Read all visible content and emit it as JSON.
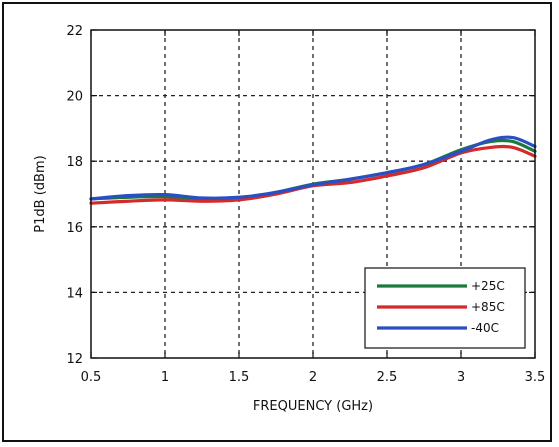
{
  "chart_data": {
    "type": "line",
    "title": "",
    "xlabel": "FREQUENCY (GHz)",
    "ylabel": "P1dB (dBm)",
    "xlim": [
      0.5,
      3.5
    ],
    "ylim": [
      12,
      22
    ],
    "x_ticks": [
      0.5,
      1,
      1.5,
      2,
      2.5,
      3,
      3.5
    ],
    "x_tick_labels": [
      "0.5",
      "1",
      "1.5",
      "2",
      "2.5",
      "3",
      "3.5"
    ],
    "y_ticks": [
      12,
      14,
      16,
      18,
      20,
      22
    ],
    "y_tick_labels": [
      "12",
      "14",
      "16",
      "18",
      "20",
      "22"
    ],
    "grid": true,
    "legend_position": "bottom-right",
    "series": [
      {
        "name": "+25C",
        "color": "#1a7a3c",
        "x": [
          0.5,
          0.75,
          1.0,
          1.25,
          1.5,
          1.75,
          2.0,
          2.25,
          2.5,
          2.75,
          3.0,
          3.2,
          3.35,
          3.5
        ],
        "y": [
          16.85,
          16.9,
          16.92,
          16.85,
          16.85,
          17.05,
          17.3,
          17.45,
          17.65,
          17.9,
          18.35,
          18.6,
          18.6,
          18.3
        ]
      },
      {
        "name": "+85C",
        "color": "#d42a2a",
        "x": [
          0.5,
          0.75,
          1.0,
          1.25,
          1.5,
          1.75,
          2.0,
          2.25,
          2.5,
          2.75,
          3.0,
          3.2,
          3.35,
          3.5
        ],
        "y": [
          16.72,
          16.78,
          16.82,
          16.78,
          16.82,
          17.0,
          17.25,
          17.35,
          17.55,
          17.8,
          18.25,
          18.42,
          18.42,
          18.15
        ]
      },
      {
        "name": "-40C",
        "color": "#2a4fc4",
        "x": [
          0.5,
          0.75,
          1.0,
          1.25,
          1.5,
          1.75,
          2.0,
          2.25,
          2.5,
          2.75,
          3.0,
          3.2,
          3.35,
          3.5
        ],
        "y": [
          16.85,
          16.95,
          16.98,
          16.88,
          16.9,
          17.05,
          17.28,
          17.45,
          17.65,
          17.9,
          18.3,
          18.65,
          18.72,
          18.45
        ]
      }
    ]
  }
}
